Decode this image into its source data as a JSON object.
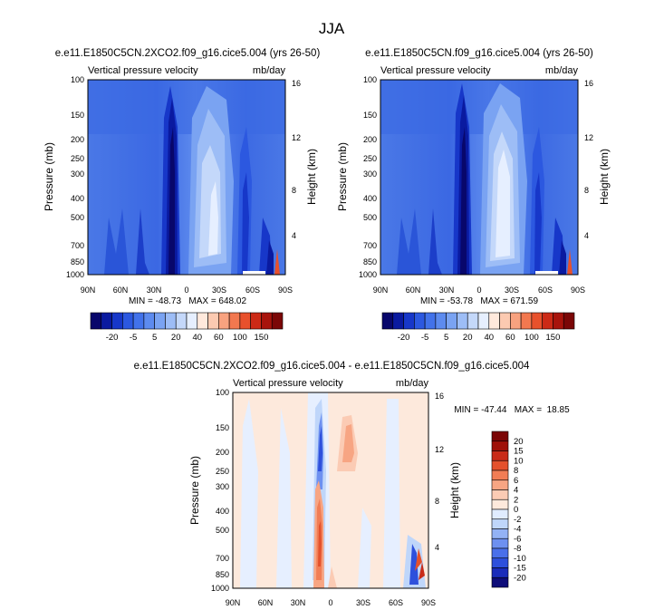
{
  "page": {
    "title": "JJA"
  },
  "colors": {
    "blue": [
      "#08076b",
      "#0a1aa0",
      "#1737c9",
      "#2c58e0",
      "#4272ea",
      "#5d8bef",
      "#7aa3f2",
      "#9dbdf6",
      "#c4d8fa",
      "#e6efff"
    ],
    "red": [
      "#ffe9dc",
      "#fccab1",
      "#f8a27f",
      "#f2784f",
      "#e8512c",
      "#cc2a16",
      "#a8140c",
      "#7b0707"
    ],
    "diff": [
      "#0e0d79",
      "#1a2cba",
      "#2e50dc",
      "#4a70ea",
      "#6d90f0",
      "#93b2f5",
      "#bfd6fa",
      "#e0ecff",
      "#fde9dc",
      "#fbcbb4",
      "#f7a583",
      "#f17d55",
      "#e4512c",
      "#c92b18",
      "#9f1109",
      "#7b0505"
    ]
  },
  "chart_data": [
    {
      "type": "heatmap",
      "panel": "left",
      "title": "e.e11.E1850C5CN.2XCO2.f09_g16.cice5.004 (yrs 26-50)",
      "left_string": "Vertical pressure velocity",
      "right_string": "mb/day",
      "ylabel": "Pressure (mb)",
      "ylabel_right": "Height (km)",
      "x_ticks": [
        "90N",
        "60N",
        "30N",
        "0",
        "30S",
        "60S",
        "90S"
      ],
      "y_ticks": [
        100,
        150,
        200,
        250,
        300,
        400,
        500,
        700,
        850,
        1000
      ],
      "y_scale": "log",
      "right_ticks": [
        "16",
        "12",
        "8",
        "4"
      ],
      "ylim": [
        1000,
        100
      ],
      "xlim": [
        90,
        -90
      ],
      "stats": "MIN = -48.73   MAX = 648.02"
    },
    {
      "type": "heatmap",
      "panel": "right",
      "title": "e.e11.E1850C5CN.f09_g16.cice5.004 (yrs 26-50)",
      "left_string": "Vertical pressure velocity",
      "right_string": "mb/day",
      "ylabel": "Pressure (mb)",
      "ylabel_right": "Height (km)",
      "x_ticks": [
        "90N",
        "60N",
        "30N",
        "0",
        "30S",
        "60S",
        "90S"
      ],
      "y_ticks": [
        100,
        150,
        200,
        250,
        300,
        400,
        500,
        700,
        850,
        1000
      ],
      "y_scale": "log",
      "right_ticks": [
        "16",
        "12",
        "8",
        "4"
      ],
      "ylim": [
        1000,
        100
      ],
      "xlim": [
        90,
        -90
      ],
      "stats": "MIN = -53.78   MAX = 671.59"
    },
    {
      "type": "heatmap",
      "panel": "difference",
      "title": "e.e11.E1850C5CN.2XCO2.f09_g16.cice5.004 - e.e11.E1850C5CN.f09_g16.cice5.004",
      "left_string": "Vertical pressure velocity",
      "right_string": "mb/day",
      "ylabel": "Pressure (mb)",
      "ylabel_right": "Height (km)",
      "x_ticks": [
        "90N",
        "60N",
        "30N",
        "0",
        "30S",
        "60S",
        "90S"
      ],
      "y_ticks": [
        100,
        150,
        200,
        250,
        300,
        400,
        500,
        700,
        850,
        1000
      ],
      "y_scale": "log",
      "right_ticks": [
        "16",
        "12",
        "8",
        "4"
      ],
      "ylim": [
        1000,
        100
      ],
      "xlim": [
        90,
        -90
      ],
      "stats": "MIN = -47.44   MAX =  18.85"
    }
  ],
  "colorbar_top": {
    "labels": [
      "-20",
      "-5",
      "5",
      "20",
      "40",
      "60",
      "100",
      "150"
    ]
  },
  "colorbar_diff": {
    "labels": [
      "20",
      "15",
      "10",
      "8",
      "6",
      "4",
      "2",
      "0",
      "-2",
      "-4",
      "-6",
      "-8",
      "-10",
      "-15",
      "-20"
    ]
  }
}
